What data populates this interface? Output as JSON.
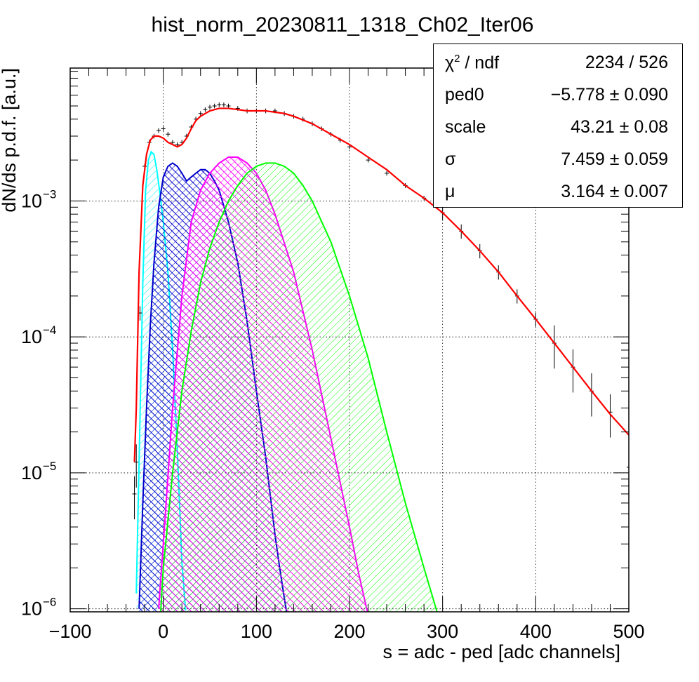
{
  "chart_data": {
    "type": "line",
    "title": "hist_norm_20230811_1318_Ch02_Iter06",
    "xlabel": "s = adc - ped [adc channels]",
    "ylabel": "dN/ds p.d.f. [a.u.]",
    "xlim": [
      -100,
      500
    ],
    "ylim": [
      9.5e-07,
      0.0095
    ],
    "yscale": "log",
    "grid": true,
    "x_ticks": [
      -100,
      0,
      100,
      200,
      300,
      400,
      500
    ],
    "x_tick_labels": [
      "−100",
      "0",
      "100",
      "200",
      "300",
      "400",
      "500"
    ],
    "y_ticks": [
      1e-06,
      1e-05,
      0.0001,
      0.001
    ],
    "y_tick_labels": [
      {
        "base": "10",
        "exp": "−6"
      },
      {
        "base": "10",
        "exp": "−5"
      },
      {
        "base": "10",
        "exp": "−4"
      },
      {
        "base": "10",
        "exp": "−3"
      }
    ],
    "colors": {
      "data": "#000000",
      "fit": "#ff0000",
      "cyan": "#00ffff",
      "blue": "#0000cc",
      "magenta": "#ff00ff",
      "green": "#00ff00"
    },
    "data_points": {
      "name": "",
      "x": [
        -31,
        -29,
        -25,
        -20,
        -15,
        -10,
        -5,
        0,
        5,
        10,
        15,
        20,
        25,
        30,
        35,
        40,
        45,
        50,
        55,
        60,
        65,
        70,
        80,
        90,
        100,
        110,
        120,
        130,
        140,
        150,
        160,
        170,
        180,
        190,
        200,
        220,
        240,
        260,
        280,
        300,
        320,
        340,
        360,
        380,
        400,
        420,
        440,
        460,
        480,
        500
      ],
      "y": [
        7e-06,
        1.2e-05,
        0.00015,
        0.0018,
        0.0027,
        0.003,
        0.0033,
        0.0034,
        0.0031,
        0.0027,
        0.0026,
        0.0027,
        0.003,
        0.0035,
        0.004,
        0.0044,
        0.0047,
        0.0049,
        0.005,
        0.0051,
        0.0051,
        0.005,
        0.0048,
        0.0046,
        0.0046,
        0.0046,
        0.0046,
        0.0044,
        0.0042,
        0.004,
        0.0037,
        0.0034,
        0.0031,
        0.0028,
        0.0025,
        0.002,
        0.0016,
        0.0013,
        0.00105,
        0.00082,
        0.0006,
        0.00043,
        0.0003,
        0.0002,
        0.000135,
        9e-05,
        6e-05,
        4e-05,
        2.8e-05,
        1.1e-05
      ]
    },
    "fit_curve": {
      "name": "",
      "x": [
        -31,
        -29,
        -26,
        -22,
        -18,
        -14,
        -10,
        -5,
        0,
        5,
        10,
        15,
        20,
        25,
        30,
        35,
        40,
        50,
        60,
        70,
        80,
        90,
        100,
        110,
        120,
        130,
        140,
        160,
        180,
        200,
        220,
        240,
        260,
        280,
        300,
        320,
        340,
        360,
        380,
        400,
        420,
        440,
        460,
        480,
        500
      ],
      "y": [
        1.2e-05,
        3e-05,
        0.0003,
        0.0013,
        0.0022,
        0.0028,
        0.003,
        0.003,
        0.0029,
        0.0027,
        0.0026,
        0.0025,
        0.0026,
        0.0029,
        0.0034,
        0.0039,
        0.0042,
        0.0046,
        0.0048,
        0.0048,
        0.0047,
        0.0046,
        0.0046,
        0.0046,
        0.0045,
        0.0044,
        0.0042,
        0.0037,
        0.0031,
        0.0026,
        0.0021,
        0.0017,
        0.0013,
        0.00105,
        0.00082,
        0.0006,
        0.00043,
        0.0003,
        0.0002,
        0.000135,
        9e-05,
        6e-05,
        4e-05,
        2.7e-05,
        1.9e-05
      ]
    },
    "components": [
      {
        "name": "",
        "color": "#00ffff",
        "hatch": "diagonal",
        "x": [
          -29,
          -26,
          -22,
          -19,
          -16,
          -13,
          -10,
          -7,
          -4,
          0,
          5,
          10,
          15,
          20,
          24
        ],
        "y": [
          1.3e-06,
          1.2e-05,
          0.00025,
          0.0012,
          0.002,
          0.0023,
          0.0022,
          0.0017,
          0.0012,
          0.0007,
          0.0003,
          8e-05,
          1.5e-05,
          2.2e-06,
          9.7e-07
        ]
      },
      {
        "name": "",
        "color": "#0000cc",
        "hatch": "cross",
        "x": [
          -26,
          -22,
          -18,
          -14,
          -10,
          -5,
          0,
          5,
          10,
          15,
          20,
          25,
          30,
          35,
          40,
          45,
          50,
          55,
          60,
          70,
          80,
          90,
          100,
          110,
          120,
          125,
          130,
          133
        ],
        "y": [
          1e-06,
          6e-06,
          3e-05,
          0.00012,
          0.00035,
          0.0009,
          0.0015,
          0.0018,
          0.0019,
          0.0018,
          0.0016,
          0.0014,
          0.0015,
          0.0016,
          0.0017,
          0.0017,
          0.0016,
          0.0014,
          0.0012,
          0.0007,
          0.00035,
          0.00013,
          4e-05,
          1.3e-05,
          3.5e-06,
          2e-06,
          1.2e-06,
          9e-07
        ]
      },
      {
        "name": "",
        "color": "#ff00ff",
        "hatch": "cross",
        "x": [
          -5,
          0,
          10,
          20,
          30,
          40,
          50,
          60,
          70,
          80,
          90,
          100,
          110,
          120,
          140,
          160,
          180,
          200,
          210,
          220
        ],
        "y": [
          1e-06,
          3e-06,
          3e-05,
          0.0002,
          0.0007,
          0.0012,
          0.0016,
          0.0019,
          0.0021,
          0.0021,
          0.0019,
          0.0016,
          0.0012,
          0.0008,
          0.0003,
          8e-05,
          1.8e-05,
          4e-06,
          1.8e-06,
          9e-07
        ]
      },
      {
        "name": "",
        "color": "#00ff00",
        "hatch": "diagonal",
        "x": [
          -3,
          0,
          10,
          20,
          30,
          40,
          50,
          60,
          70,
          80,
          90,
          100,
          110,
          120,
          130,
          140,
          150,
          160,
          180,
          200,
          220,
          240,
          260,
          280,
          295
        ],
        "y": [
          9e-07,
          2e-06,
          1e-05,
          4e-05,
          0.00011,
          0.00025,
          0.00045,
          0.0007,
          0.001,
          0.0013,
          0.0016,
          0.0018,
          0.0019,
          0.0019,
          0.0018,
          0.0016,
          0.0013,
          0.001,
          0.0005,
          0.0002,
          7e-05,
          2e-05,
          6e-06,
          2e-06,
          9e-07
        ]
      }
    ]
  },
  "stats_box": {
    "rows": [
      {
        "name_base": "χ",
        "name_sup": "2",
        "name_rest": " / ndf",
        "value": "2234 / 526"
      },
      {
        "name": "ped0",
        "value": "−5.778 ± 0.090"
      },
      {
        "name": "scale",
        "value": "43.21 ± 0.08"
      },
      {
        "name": "σ",
        "value": "7.459 ± 0.059"
      },
      {
        "name": "μ",
        "value": "3.164 ± 0.007"
      }
    ]
  }
}
